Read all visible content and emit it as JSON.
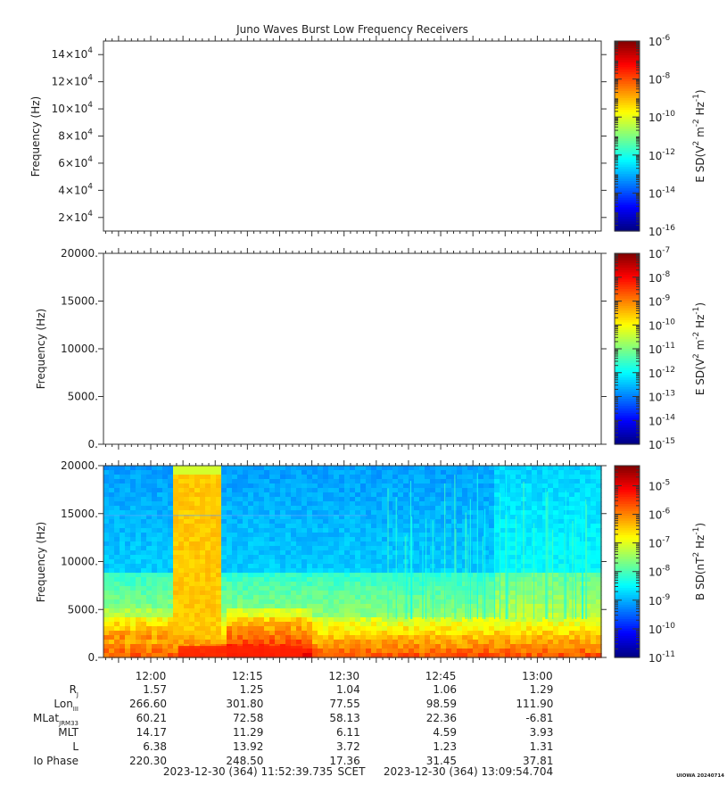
{
  "title": "Juno Waves Burst Low Frequency Receivers",
  "chart_data": [
    {
      "type": "heatmap",
      "panel": "top",
      "ylabel": "Frequency (Hz)",
      "ylim": [
        10000,
        150000
      ],
      "y_ticks": [
        {
          "value": 20000,
          "mant": "2×10",
          "exp": "4"
        },
        {
          "value": 40000,
          "mant": "4×10",
          "exp": "4"
        },
        {
          "value": 60000,
          "mant": "6×10",
          "exp": "4"
        },
        {
          "value": 80000,
          "mant": "8×10",
          "exp": "4"
        },
        {
          "value": 100000,
          "mant": "10×10",
          "exp": "4"
        },
        {
          "value": 120000,
          "mant": "12×10",
          "exp": "4"
        },
        {
          "value": 140000,
          "mant": "14×10",
          "exp": "4"
        }
      ],
      "colorbar": {
        "label_parts": [
          "E SD(V",
          "2",
          " m",
          "-2",
          " Hz",
          "-1",
          ")"
        ],
        "ticks": [
          "-6",
          "-8",
          "-10",
          "-12",
          "-14",
          "-16"
        ],
        "range_log10": [
          -16,
          -6
        ]
      }
    },
    {
      "type": "heatmap",
      "panel": "middle",
      "ylabel": "Frequency (Hz)",
      "ylim": [
        0,
        20000
      ],
      "y_ticks": [
        {
          "value": 0,
          "label": "0."
        },
        {
          "value": 5000,
          "label": "5000."
        },
        {
          "value": 10000,
          "label": "10000."
        },
        {
          "value": 15000,
          "label": "15000."
        },
        {
          "value": 20000,
          "label": "20000."
        }
      ],
      "colorbar": {
        "label_parts": [
          "E SD(V",
          "2",
          " m",
          "-2",
          " Hz",
          "-1",
          ")"
        ],
        "ticks": [
          "-7",
          "-8",
          "-9",
          "-10",
          "-11",
          "-12",
          "-13",
          "-14",
          "-15"
        ],
        "range_log10": [
          -15,
          -7
        ]
      }
    },
    {
      "type": "heatmap",
      "panel": "bottom",
      "ylabel": "Frequency (Hz)",
      "ylim": [
        0,
        20000
      ],
      "y_ticks": [
        {
          "value": 0,
          "label": "0."
        },
        {
          "value": 5000,
          "label": "5000."
        },
        {
          "value": 10000,
          "label": "10000."
        },
        {
          "value": 15000,
          "label": "15000."
        },
        {
          "value": 20000,
          "label": "20000."
        }
      ],
      "colorbar": {
        "label_parts": [
          "B SD(nT",
          "2",
          " Hz",
          "-1",
          ")"
        ],
        "ticks": [
          "-5",
          "-6",
          "-7",
          "-8",
          "-9",
          "-10",
          "-11"
        ],
        "range_log10": [
          -11,
          -4.3
        ]
      }
    }
  ],
  "time_axis": {
    "start_minutes": 712.661,
    "end_minutes": 789.912,
    "tick_labels": [
      "12:00",
      "12:15",
      "12:30",
      "12:45",
      "13:00"
    ],
    "tick_minutes": [
      720,
      735,
      750,
      765,
      780
    ]
  },
  "ephemeris": {
    "rows": [
      {
        "label": "R",
        "sub": "J",
        "values": [
          "1.57",
          "1.25",
          "1.04",
          "1.06",
          "1.29"
        ]
      },
      {
        "label": "Lon",
        "sub": "III",
        "values": [
          "266.60",
          "301.80",
          "77.55",
          "98.59",
          "111.90"
        ]
      },
      {
        "label": "MLat",
        "sub": "JRM33",
        "values": [
          "60.21",
          "72.58",
          "58.13",
          "22.36",
          "-6.81"
        ]
      },
      {
        "label": "MLT",
        "sub": "",
        "values": [
          "14.17",
          "11.29",
          "6.11",
          "4.59",
          "3.93"
        ]
      },
      {
        "label": "L",
        "sub": "",
        "values": [
          "6.38",
          "13.92",
          "3.72",
          "1.23",
          "1.31"
        ]
      },
      {
        "label": "Io Phase",
        "sub": "",
        "values": [
          "220.30",
          "248.50",
          "17.36",
          "31.45",
          "37.81"
        ]
      }
    ]
  },
  "footer": {
    "start": "2023-12-30 (364) 11:52:39.735",
    "scet": "SCET",
    "end": "2023-12-30 (364) 13:09:54.704",
    "stamp": "UIOWA 20240714"
  }
}
